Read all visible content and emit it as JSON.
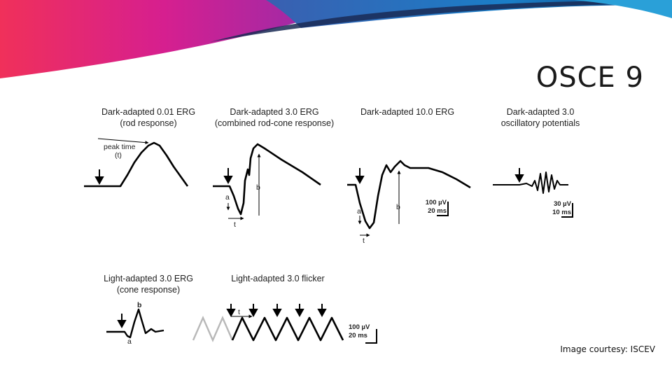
{
  "slide": {
    "title": "OSCE 9",
    "credit": "Image courtesy: ISCEV"
  },
  "colors": {
    "banner_magenta": "#e0218a",
    "banner_blue": "#1e6fb8",
    "banner_navy": "#1a2a55",
    "trace": "#000000",
    "trace_gray": "#b8b8b8"
  },
  "panels": {
    "rod": {
      "title_line1": "Dark-adapted 0.01 ERG",
      "title_line2": "(rod response)",
      "peak_label": "peak time",
      "peak_symbol": "(t)"
    },
    "combined": {
      "title_line1": "Dark-adapted 3.0 ERG",
      "title_line2": "(combined rod-cone response)",
      "label_a": "a",
      "label_b": "b",
      "label_t": "t"
    },
    "bright": {
      "title_line1": "Dark-adapted 10.0 ERG",
      "label_a": "a",
      "label_b": "b",
      "label_t": "t",
      "scale_amp": "100 µV",
      "scale_time": "20 ms"
    },
    "ops": {
      "title_line1": "Dark-adapted 3.0",
      "title_line2": "oscillatory potentials",
      "scale_amp": "30 µV",
      "scale_time": "10 ms"
    },
    "cone": {
      "title_line1": "Light-adapted 3.0 ERG",
      "title_line2": "(cone response)",
      "label_a": "a",
      "label_b": "b"
    },
    "flicker": {
      "title_line1": "Light-adapted 3.0 flicker",
      "label_t": "t",
      "scale_amp": "100 µV",
      "scale_time": "20 ms"
    }
  }
}
